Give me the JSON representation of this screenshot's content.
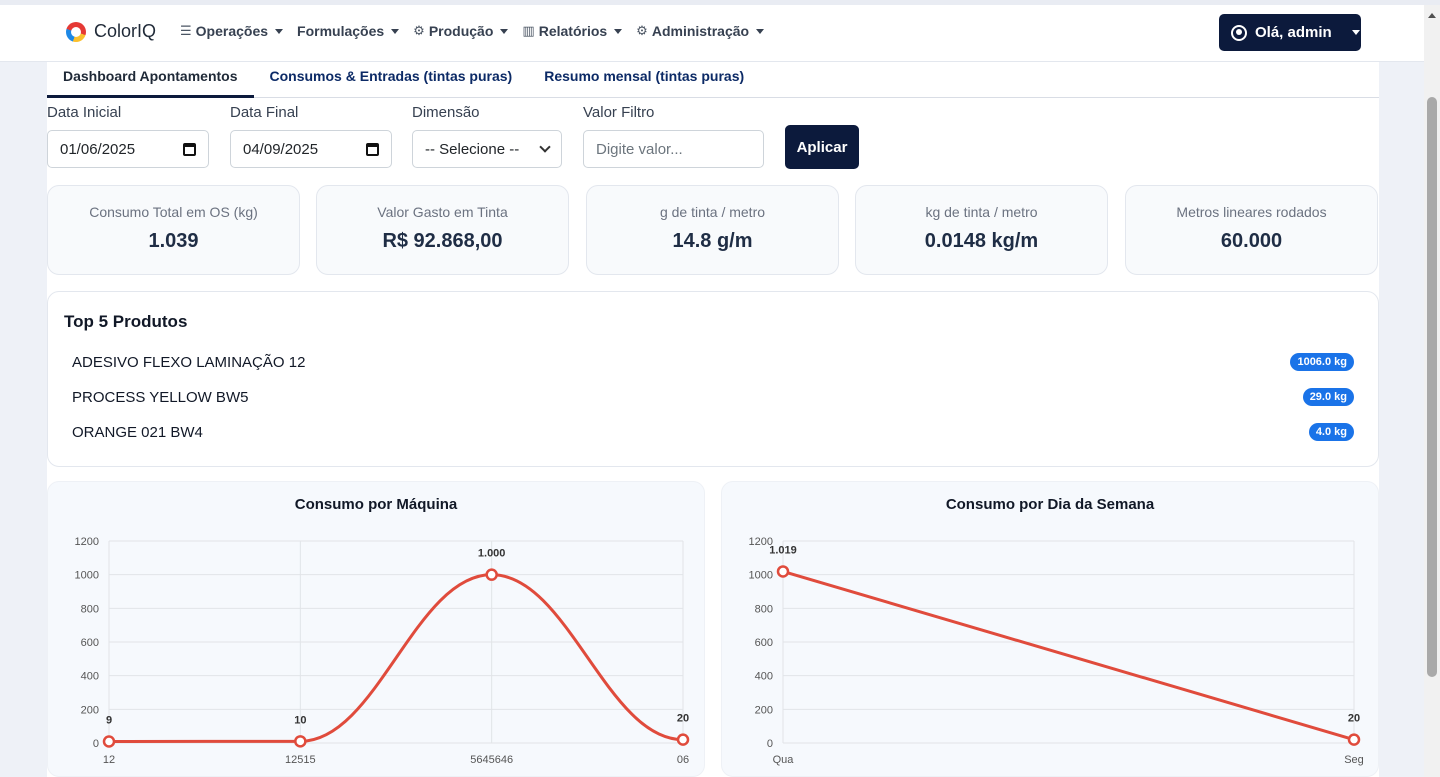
{
  "brand": {
    "name": "ColorIQ"
  },
  "nav": {
    "items": [
      {
        "label": "Operações",
        "icon": "sliders-icon"
      },
      {
        "label": "Formulações",
        "icon": ""
      },
      {
        "label": "Produção",
        "icon": "gear-icon"
      },
      {
        "label": "Relatórios",
        "icon": "bar-chart-icon"
      },
      {
        "label": "Administração",
        "icon": "cog-icon"
      }
    ],
    "user_label": "Olá, admin"
  },
  "tabs": [
    {
      "label": "Dashboard Apontamentos",
      "active": true
    },
    {
      "label": "Consumos & Entradas (tintas puras)",
      "active": false
    },
    {
      "label": "Resumo mensal (tintas puras)",
      "active": false
    }
  ],
  "filters": {
    "start_label": "Data Inicial",
    "start_value": "01/06/2025",
    "end_label": "Data Final",
    "end_value": "04/09/2025",
    "dimension_label": "Dimensão",
    "dimension_value": "-- Selecione --",
    "filter_label": "Valor Filtro",
    "filter_placeholder": "Digite valor...",
    "apply_label": "Aplicar"
  },
  "kpis": [
    {
      "label": "Consumo Total em OS (kg)",
      "value": "1.039"
    },
    {
      "label": "Valor Gasto em Tinta",
      "value": "R$ 92.868,00"
    },
    {
      "label": "g de tinta / metro",
      "value": "14.8 g/m"
    },
    {
      "label": "kg de tinta / metro",
      "value": "0.0148 kg/m"
    },
    {
      "label": "Metros lineares rodados",
      "value": "60.000"
    }
  ],
  "top5": {
    "title": "Top 5 Produtos",
    "items": [
      {
        "name": "ADESIVO FLEXO LAMINAÇÃO 12",
        "qty": "1006.0 kg"
      },
      {
        "name": "PROCESS YELLOW BW5",
        "qty": "29.0 kg"
      },
      {
        "name": "ORANGE 021 BW4",
        "qty": "4.0 kg"
      }
    ]
  },
  "colors": {
    "line": "#e04b3c",
    "navy": "#0c1a3c",
    "badge": "#1a73e8"
  },
  "chart_data": [
    {
      "type": "line",
      "title": "Consumo por Máquina",
      "categories": [
        "12",
        "12515",
        "5645646",
        "06"
      ],
      "values": [
        9,
        10,
        1000,
        20
      ],
      "data_labels": [
        "9",
        "10",
        "1.000",
        "20"
      ],
      "ylim": [
        0,
        1200
      ],
      "yticks": [
        0,
        200,
        400,
        600,
        800,
        1000,
        1200
      ],
      "smooth": true,
      "grid": true
    },
    {
      "type": "line",
      "title": "Consumo por Dia da Semana",
      "categories": [
        "Qua",
        "Seg"
      ],
      "values": [
        1019,
        20
      ],
      "data_labels": [
        "1.019",
        "20"
      ],
      "ylim": [
        0,
        1200
      ],
      "yticks": [
        0,
        200,
        400,
        600,
        800,
        1000,
        1200
      ],
      "smooth": false,
      "grid": true
    }
  ]
}
